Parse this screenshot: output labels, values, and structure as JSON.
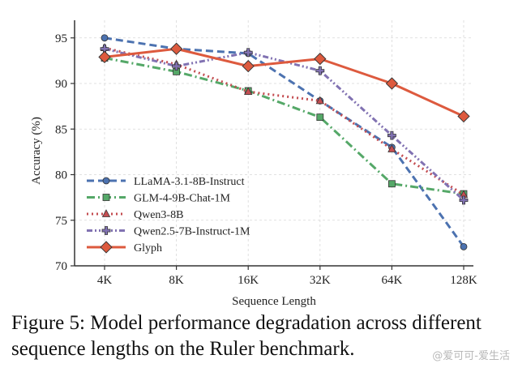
{
  "chart_data": {
    "type": "line",
    "title": "",
    "xlabel": "Sequence Length",
    "ylabel": "Accuracy (%)",
    "categories": [
      "4K",
      "8K",
      "16K",
      "32K",
      "64K",
      "128K"
    ],
    "ylim": [
      70,
      97
    ],
    "yticks": [
      70,
      75,
      80,
      85,
      90,
      95
    ],
    "grid": true,
    "legend_position": "lower-left",
    "series": [
      {
        "name": "LLaMA-3.1-8B-Instruct",
        "color": "#4c72b0",
        "marker": "circle",
        "linestyle": "dashed",
        "values": [
          95.0,
          93.8,
          93.3,
          88.1,
          83.0,
          72.1
        ]
      },
      {
        "name": "GLM-4-9B-Chat-1M",
        "color": "#55a868",
        "marker": "square",
        "linestyle": "dashdot",
        "values": [
          92.8,
          91.3,
          89.2,
          86.3,
          79.0,
          77.9
        ]
      },
      {
        "name": "Qwen3-8B",
        "color": "#c44e52",
        "marker": "triangle",
        "linestyle": "dotted",
        "values": [
          93.9,
          92.1,
          89.1,
          88.1,
          82.8,
          77.8
        ]
      },
      {
        "name": "Qwen2.5-7B-Instruct-1M",
        "color": "#8172b2",
        "marker": "plus",
        "linestyle": "dashdotdot",
        "values": [
          93.8,
          91.9,
          93.4,
          91.4,
          84.3,
          77.2
        ]
      },
      {
        "name": "Glyph",
        "color": "#dd5a3e",
        "marker": "diamond",
        "linestyle": "solid",
        "values": [
          92.9,
          93.8,
          91.9,
          92.7,
          90.0,
          86.4
        ]
      }
    ]
  },
  "caption": {
    "text": "Figure 5: Model performance degradation across different sequence lengths on the Ruler benchmark."
  },
  "watermark": "@爱可可-爱生活"
}
